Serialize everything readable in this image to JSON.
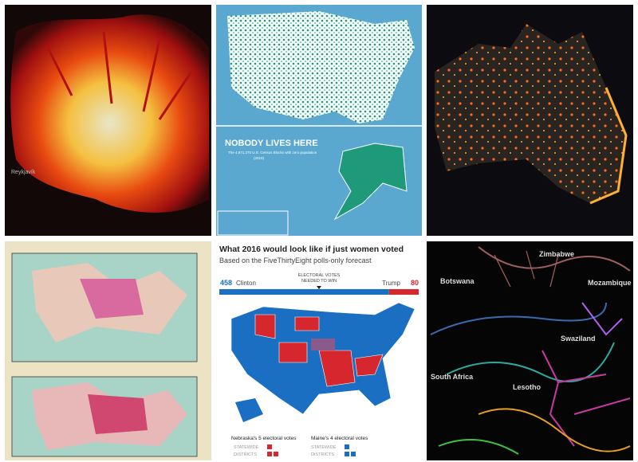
{
  "iceland": {
    "label": "Reykjavík"
  },
  "nobody_lives_here": {
    "title": "NOBODY LIVES HERE",
    "subtitle": "The 4,871,270 U.S. Census Blocks with zero population",
    "year": "(2010)"
  },
  "women_voted": {
    "title": "What 2016 would look like if just women voted",
    "subtitle": "Based on the FiveThirtyEight polls-only forecast",
    "clinton": {
      "name": "Clinton",
      "votes": 458
    },
    "trump": {
      "name": "Trump",
      "votes": 80
    },
    "needed_line1": "ELECTORAL VOTES",
    "needed_line2": "NEEDED TO WIN",
    "nebraska": "Nebraska's 5 electoral votes",
    "maine": "Maine's 4 electoral votes",
    "statewide": "STATEWIDE",
    "districts": "DISTRICTS"
  },
  "rivers": {
    "labels": [
      "Zimbabwe",
      "Botswana",
      "Mozambique",
      "Swaziland",
      "South Africa",
      "Lesotho"
    ]
  }
}
